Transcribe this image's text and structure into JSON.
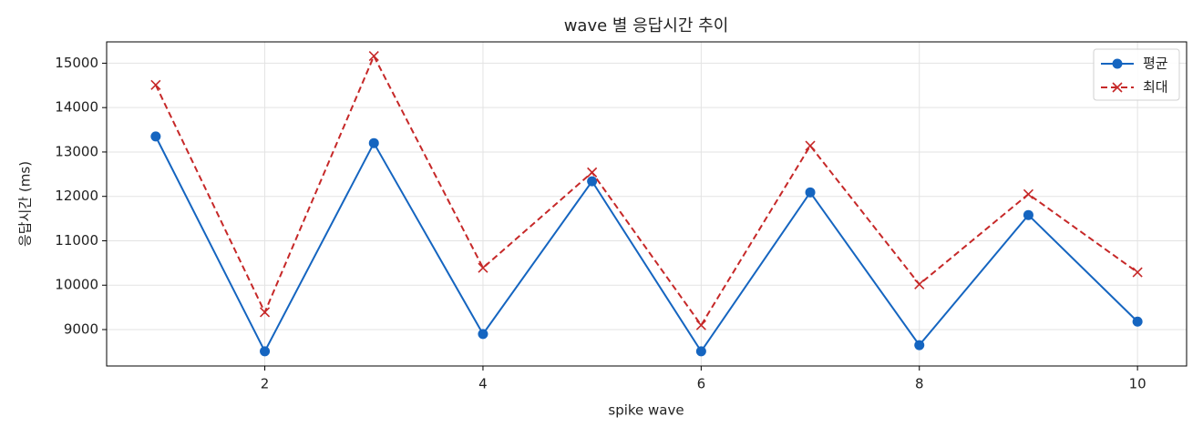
{
  "chart_data": {
    "type": "line",
    "title": "wave 별 응답시간 추이",
    "x_label": "spike wave",
    "y_label": "응답시간 (ms)",
    "x": [
      1,
      2,
      3,
      4,
      5,
      6,
      7,
      8,
      9,
      10
    ],
    "series": [
      {
        "name": "평균",
        "color": "#1565c0",
        "linestyle": "solid",
        "marker": "o",
        "values": [
          13350,
          8510,
          13200,
          8900,
          12340,
          8510,
          12090,
          8650,
          11580,
          9180
        ]
      },
      {
        "name": "최대",
        "color": "#c62828",
        "linestyle": "dashed",
        "marker": "x",
        "values": [
          14510,
          9390,
          15160,
          10390,
          12540,
          9100,
          13140,
          10020,
          12050,
          10290
        ]
      }
    ],
    "xlim": [
      0.55,
      10.45
    ],
    "xticks": [
      2,
      4,
      6,
      8,
      10
    ],
    "ylim": [
      8180,
      15480
    ],
    "yticks": [
      9000,
      10000,
      11000,
      12000,
      13000,
      14000,
      15000
    ],
    "grid": true,
    "legend": "upper right"
  }
}
